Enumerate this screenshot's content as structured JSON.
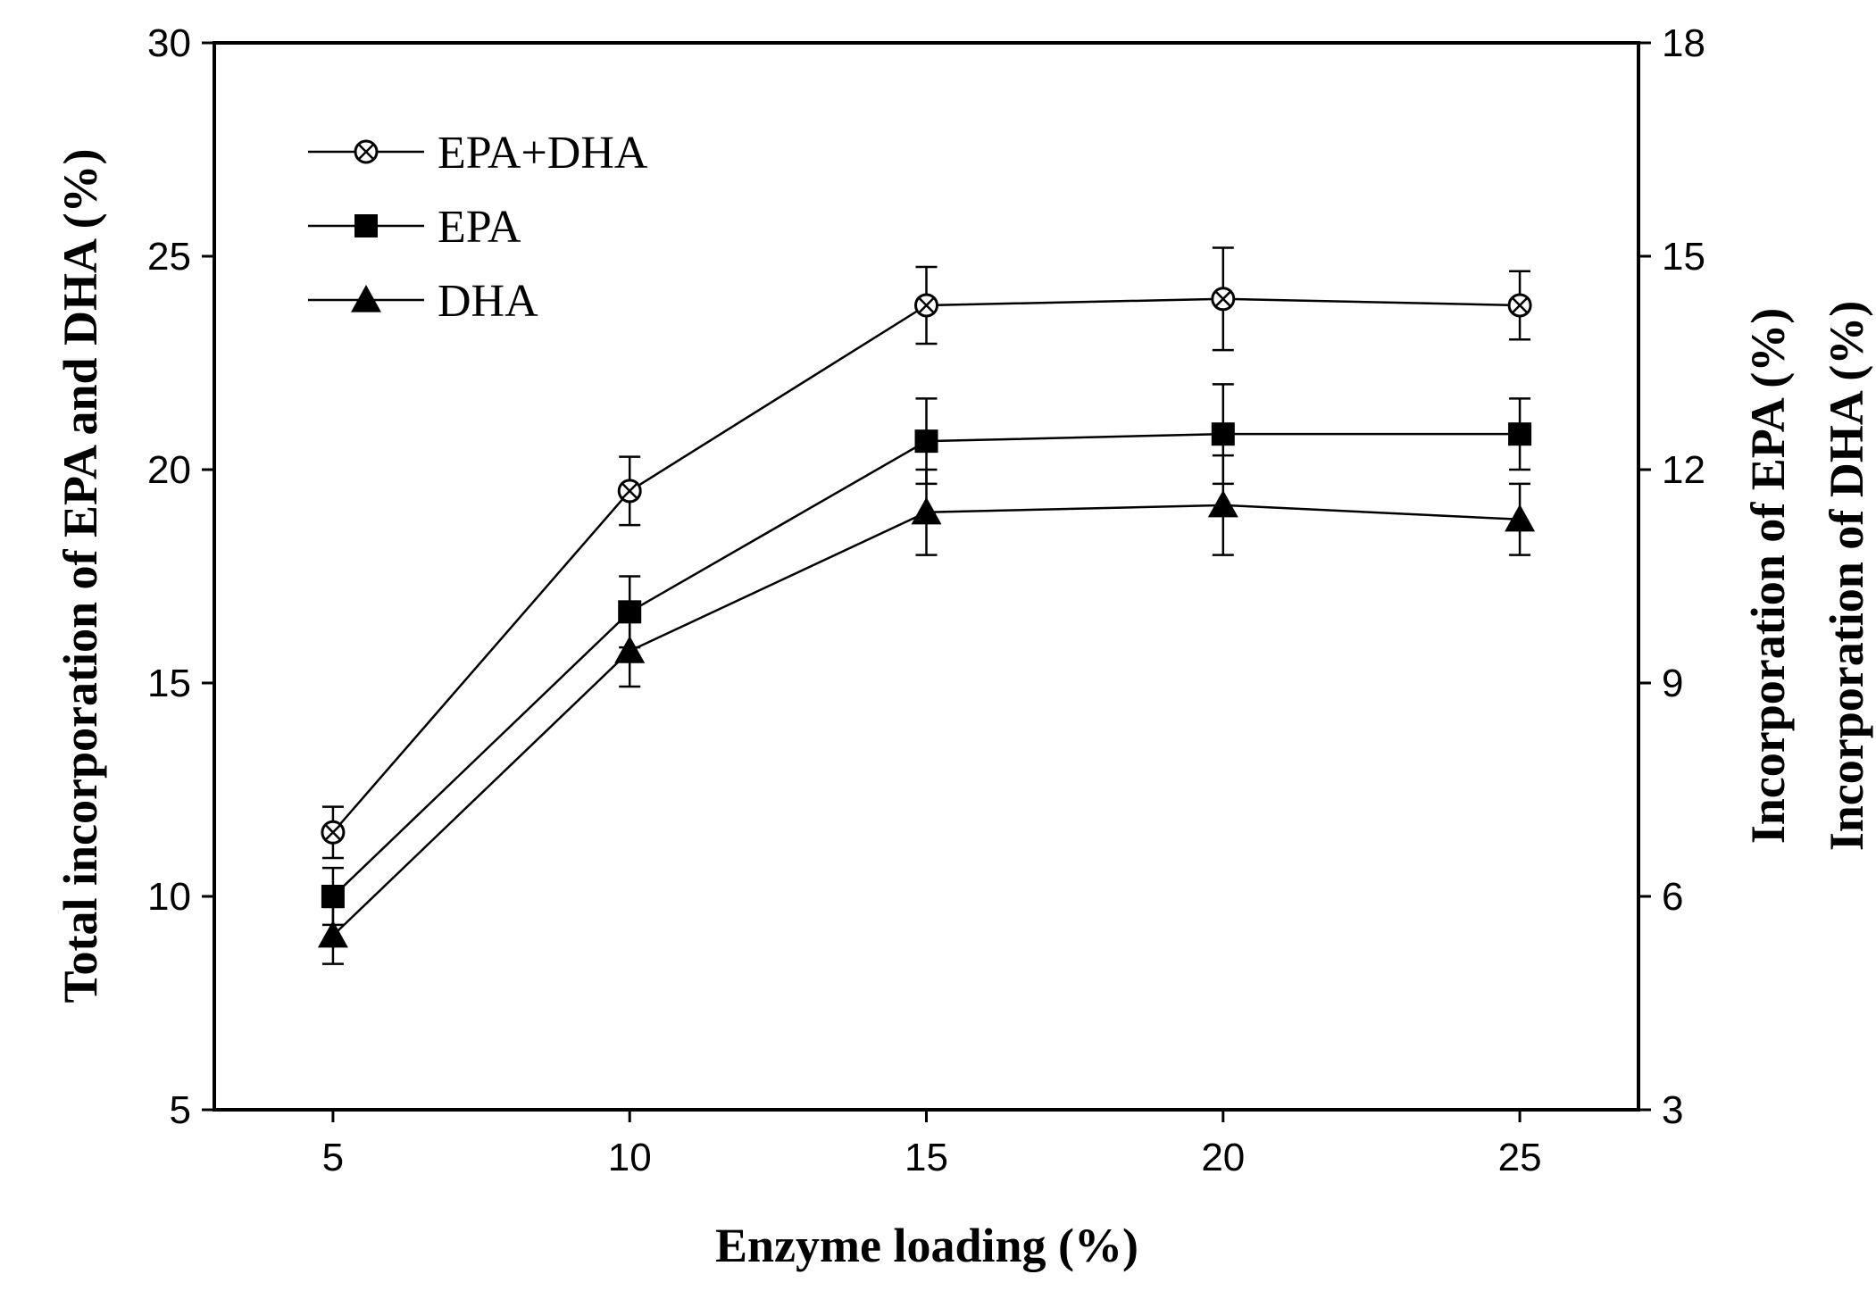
{
  "chart_data": {
    "type": "line",
    "xlabel": "Enzyme loading (%)",
    "ylabel_left": "Total incorporation of EPA and DHA (%)",
    "ylabel_right": [
      "Incorporation of EPA (%)",
      "Incorporation of DHA (%)"
    ],
    "x": [
      5,
      10,
      15,
      20,
      25
    ],
    "x_ticks": [
      "5",
      "10",
      "15",
      "20",
      "25"
    ],
    "xlim": [
      3,
      27
    ],
    "ylim_left": [
      5,
      30
    ],
    "ylim_right": [
      3,
      18
    ],
    "left_ticks": [
      "5",
      "10",
      "15",
      "20",
      "25",
      "30"
    ],
    "right_ticks": [
      "3",
      "6",
      "9",
      "12",
      "15",
      "18"
    ],
    "grid": false,
    "legend_position": "top-left",
    "series": [
      {
        "name": "EPA+DHA",
        "axis": "left",
        "marker": "circle-x",
        "values": [
          11.5,
          19.5,
          23.85,
          24.0,
          23.85
        ],
        "errors": [
          0.6,
          0.8,
          0.9,
          1.2,
          0.8
        ]
      },
      {
        "name": "EPA",
        "axis": "right",
        "marker": "square",
        "values": [
          6.0,
          10.0,
          12.4,
          12.5,
          12.5
        ],
        "errors": [
          0.4,
          0.5,
          0.6,
          0.7,
          0.5
        ]
      },
      {
        "name": "DHA",
        "axis": "right",
        "marker": "triangle",
        "values": [
          5.45,
          9.45,
          11.4,
          11.5,
          11.3
        ],
        "errors": [
          0.4,
          0.5,
          0.6,
          0.7,
          0.5
        ]
      }
    ]
  }
}
